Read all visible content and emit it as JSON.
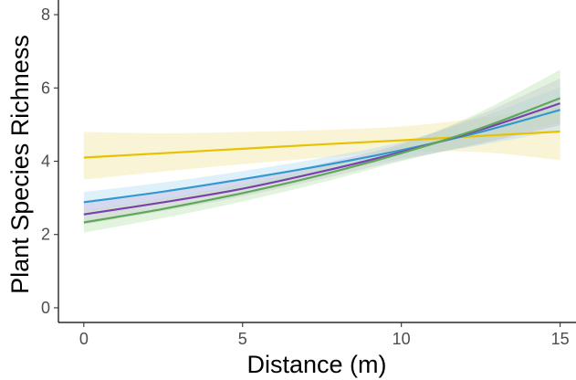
{
  "chart_data": {
    "type": "line",
    "title": "",
    "xlabel": "Distance (m)",
    "ylabel": "Plant Species Richness",
    "xlim": [
      -0.8,
      15.5
    ],
    "ylim": [
      -0.4,
      8.4
    ],
    "x_ticks": [
      0,
      5,
      10,
      15
    ],
    "y_ticks": [
      0,
      2,
      4,
      6,
      8
    ],
    "grid": false,
    "legend": "none",
    "series": [
      {
        "color": "#E6C200",
        "ribbon_color": "#F2E394",
        "x": [
          0,
          2.5,
          5,
          7.5,
          10,
          12.5,
          15
        ],
        "values": [
          4.1,
          4.22,
          4.34,
          4.46,
          4.57,
          4.69,
          4.81
        ],
        "lower": [
          3.5,
          3.72,
          3.92,
          4.1,
          4.25,
          4.25,
          4.03
        ],
        "upper": [
          4.8,
          4.76,
          4.8,
          4.85,
          4.95,
          5.18,
          5.52
        ]
      },
      {
        "color": "#3399CC",
        "ribbon_color": "#A8D8EE",
        "x": [
          0,
          2.5,
          5,
          7.5,
          10,
          12.5,
          15
        ],
        "values": [
          2.88,
          3.17,
          3.51,
          3.88,
          4.3,
          4.8,
          5.4
        ],
        "lower": [
          2.62,
          2.94,
          3.3,
          3.68,
          4.08,
          4.44,
          4.84
        ],
        "upper": [
          3.16,
          3.42,
          3.73,
          4.09,
          4.53,
          5.2,
          6.02
        ]
      },
      {
        "color": "#7B3FB3",
        "ribbon_color": "#C9B0E3",
        "x": [
          0,
          2.5,
          5,
          7.5,
          10,
          12.5,
          15
        ],
        "values": [
          2.55,
          2.88,
          3.25,
          3.72,
          4.25,
          4.86,
          5.58
        ],
        "lower": [
          2.28,
          2.64,
          3.04,
          3.52,
          4.03,
          4.48,
          4.98
        ],
        "upper": [
          2.84,
          3.14,
          3.48,
          3.93,
          4.48,
          5.28,
          6.26
        ]
      },
      {
        "color": "#5FA85A",
        "ribbon_color": "#B5E3A8",
        "x": [
          0,
          2.5,
          5,
          7.5,
          10,
          12.5,
          15
        ],
        "values": [
          2.33,
          2.7,
          3.13,
          3.63,
          4.22,
          4.9,
          5.72
        ],
        "lower": [
          2.05,
          2.45,
          2.9,
          3.42,
          4.0,
          4.5,
          5.05
        ],
        "upper": [
          2.65,
          2.98,
          3.37,
          3.85,
          4.45,
          5.35,
          6.5
        ]
      }
    ]
  }
}
